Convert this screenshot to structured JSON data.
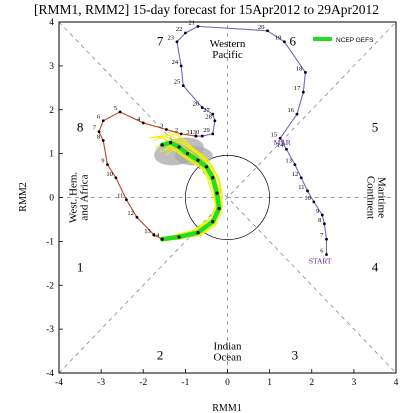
{
  "chart_data": {
    "type": "line",
    "title": "[RMM1, RMM2] 15-day forecast for 15Apr2012 to 29Apr2012",
    "xlabel": "RMM1",
    "ylabel": "RMM2",
    "xlim": [
      -4,
      4
    ],
    "ylim": [
      -4,
      4
    ],
    "xticks": [
      "-4",
      "-3",
      "-2",
      "-1",
      "0",
      "1",
      "2",
      "3",
      "4"
    ],
    "yticks": [
      "-4",
      "-3",
      "-2",
      "-1",
      "0",
      "1",
      "2",
      "3",
      "4"
    ],
    "phases": [
      {
        "label": "1",
        "x": -3.5,
        "y": -1.6
      },
      {
        "label": "2",
        "x": -1.6,
        "y": -3.6
      },
      {
        "label": "3",
        "x": 1.6,
        "y": -3.6
      },
      {
        "label": "4",
        "x": 3.5,
        "y": -1.6
      },
      {
        "label": "5",
        "x": 3.5,
        "y": 1.6
      },
      {
        "label": "6",
        "x": 1.55,
        "y": 3.55
      },
      {
        "label": "7",
        "x": -1.6,
        "y": 3.55
      },
      {
        "label": "8",
        "x": -3.5,
        "y": 1.6
      }
    ],
    "regions": [
      {
        "lines": [
          "Western",
          "Pacific"
        ],
        "x": 0,
        "y": 3.4,
        "rotate": 0
      },
      {
        "lines": [
          "Indian",
          "Ocean"
        ],
        "x": 0,
        "y": -3.5,
        "rotate": 0
      },
      {
        "lines": [
          "West. Hem.",
          "and Africa"
        ],
        "x": -3.55,
        "y": 0,
        "rotate": -90
      },
      {
        "lines": [
          "Maritime",
          "Continent"
        ],
        "x": 3.55,
        "y": 0,
        "rotate": 90
      }
    ],
    "annotations": [
      {
        "text": "START",
        "x": 2.2,
        "y": -1.5
      },
      {
        "text": "MAR",
        "x": 1.3,
        "y": 1.2
      }
    ],
    "legend": {
      "position": "top-right",
      "label": "NCEP GEFS",
      "color": "#22dd22"
    },
    "series": [
      {
        "color": "#8060c0",
        "points": [
          {
            "label": "6",
            "x": 2.35,
            "y": -1.3
          },
          {
            "label": "7",
            "x": 2.35,
            "y": -0.95
          },
          {
            "label": "8",
            "x": 2.3,
            "y": -0.6
          },
          {
            "label": "9",
            "x": 2.25,
            "y": -0.4
          },
          {
            "label": "10",
            "x": 2.05,
            "y": -0.1
          },
          {
            "label": "11",
            "x": 1.9,
            "y": 0.15
          },
          {
            "label": "12",
            "x": 1.75,
            "y": 0.45
          },
          {
            "label": "13",
            "x": 1.6,
            "y": 0.75
          },
          {
            "label": "14",
            "x": 1.4,
            "y": 1.1
          },
          {
            "label": "15",
            "x": 1.25,
            "y": 1.35
          },
          {
            "label": "16",
            "x": 1.65,
            "y": 1.9
          },
          {
            "label": "17",
            "x": 1.8,
            "y": 2.4
          },
          {
            "label": "18",
            "x": 1.85,
            "y": 2.85
          },
          {
            "label": "19",
            "x": 1.35,
            "y": 3.55
          },
          {
            "label": "20",
            "x": 0.95,
            "y": 3.8
          },
          {
            "label": "21",
            "x": -0.7,
            "y": 3.9
          },
          {
            "label": "22",
            "x": -1.0,
            "y": 3.75
          },
          {
            "label": "23",
            "x": -1.2,
            "y": 3.55
          },
          {
            "label": "24",
            "x": -1.1,
            "y": 3.0
          },
          {
            "label": "25",
            "x": -1.05,
            "y": 2.55
          },
          {
            "label": "26",
            "x": -0.6,
            "y": 2.05
          },
          {
            "label": "27",
            "x": -0.35,
            "y": 1.9
          },
          {
            "label": "28",
            "x": -0.3,
            "y": 1.75
          },
          {
            "label": "29",
            "x": -0.35,
            "y": 1.45
          },
          {
            "label": "30",
            "x": -0.6,
            "y": 1.4
          },
          {
            "label": "31",
            "x": -0.75,
            "y": 1.4
          }
        ]
      },
      {
        "color": "#c04020",
        "points": [
          {
            "label": "1",
            "x": -0.75,
            "y": 1.4
          },
          {
            "label": "2",
            "x": -1.1,
            "y": 1.45
          },
          {
            "label": "3",
            "x": -1.45,
            "y": 1.55
          },
          {
            "label": "4",
            "x": -2.0,
            "y": 1.7
          },
          {
            "label": "5",
            "x": -2.55,
            "y": 1.95
          },
          {
            "label": "6",
            "x": -2.95,
            "y": 1.75
          },
          {
            "label": "7",
            "x": -3.05,
            "y": 1.5
          },
          {
            "label": "8",
            "x": -2.95,
            "y": 1.3
          },
          {
            "label": "9",
            "x": -2.85,
            "y": 0.75
          },
          {
            "label": "10",
            "x": -2.65,
            "y": 0.45
          },
          {
            "label": "11",
            "x": -2.4,
            "y": -0.05
          },
          {
            "label": "12",
            "x": -2.15,
            "y": -0.45
          },
          {
            "label": "13",
            "x": -1.75,
            "y": -0.85
          },
          {
            "label": "14",
            "x": -1.55,
            "y": -0.95
          }
        ]
      },
      {
        "color": "#22dd22",
        "points": [
          {
            "x": -1.55,
            "y": -0.95
          },
          {
            "x": -1.15,
            "y": -0.9
          },
          {
            "x": -0.7,
            "y": -0.8
          },
          {
            "x": -0.35,
            "y": -0.55
          },
          {
            "x": -0.2,
            "y": -0.25
          },
          {
            "x": -0.25,
            "y": 0.1
          },
          {
            "x": -0.35,
            "y": 0.45
          },
          {
            "x": -0.5,
            "y": 0.7
          },
          {
            "x": -0.7,
            "y": 0.85
          },
          {
            "x": -0.95,
            "y": 1.0
          },
          {
            "x": -1.15,
            "y": 1.15
          },
          {
            "x": -1.35,
            "y": 1.25
          },
          {
            "x": -1.55,
            "y": 1.2
          }
        ]
      }
    ]
  }
}
